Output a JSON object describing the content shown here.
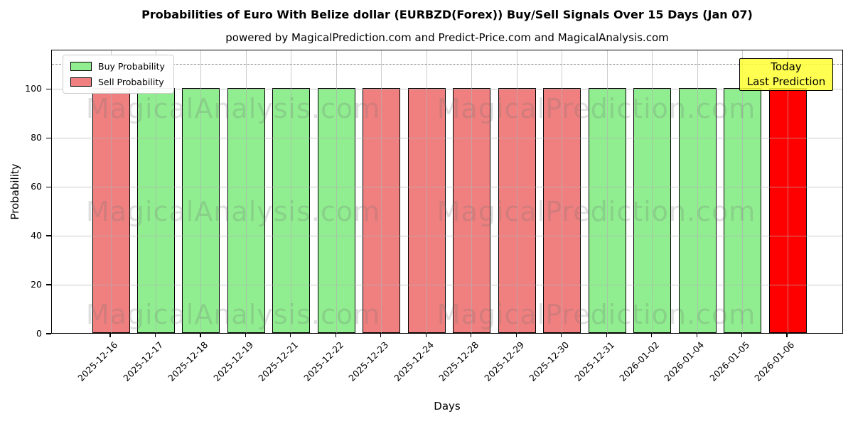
{
  "title": "Probabilities of Euro With Belize dollar (EURBZD(Forex)) Buy/Sell Signals Over 15 Days (Jan 07)",
  "subtitle": "powered by MagicalPrediction.com and Predict-Price.com and MagicalAnalysis.com",
  "legend": [
    {
      "label": "Buy Probability",
      "color": "#90EE90"
    },
    {
      "label": "Sell Probability",
      "color": "#F08080"
    }
  ],
  "annotation": {
    "line1": "Today",
    "line2": "Last Prediction",
    "bg": "#FFFF33"
  },
  "watermarks": {
    "left": "MagicalAnalysis.com",
    "right": "MagicalPrediction.com"
  },
  "chart_data": {
    "type": "bar",
    "title": "Probabilities of Euro With Belize dollar (EURBZD(Forex)) Buy/Sell Signals Over 15 Days (Jan 07)",
    "xlabel": "Days",
    "ylabel": "Probability",
    "categories": [
      "2025-12-16",
      "2025-12-17",
      "2025-12-18",
      "2025-12-19",
      "2025-12-21",
      "2025-12-22",
      "2025-12-23",
      "2025-12-24",
      "2025-12-28",
      "2025-12-29",
      "2025-12-30",
      "2025-12-31",
      "2026-01-02",
      "2026-01-04",
      "2026-01-05",
      "2026-01-06"
    ],
    "series": [
      {
        "name": "Probability",
        "values": [
          100,
          100,
          100,
          100,
          100,
          100,
          100,
          100,
          100,
          100,
          100,
          100,
          100,
          100,
          100,
          100
        ]
      }
    ],
    "bar_types": [
      "sell",
      "buy",
      "buy",
      "buy",
      "buy",
      "buy",
      "sell",
      "sell",
      "sell",
      "sell",
      "sell",
      "buy",
      "buy",
      "buy",
      "buy",
      "today"
    ],
    "colors": {
      "buy": "#90EE90",
      "sell": "#F08080",
      "today": "#FF0000"
    },
    "yticks": [
      0,
      20,
      40,
      60,
      80,
      100
    ],
    "ylim": [
      0,
      116
    ],
    "dashed_line_y": 110,
    "grid": true,
    "legend_position": "upper left"
  }
}
